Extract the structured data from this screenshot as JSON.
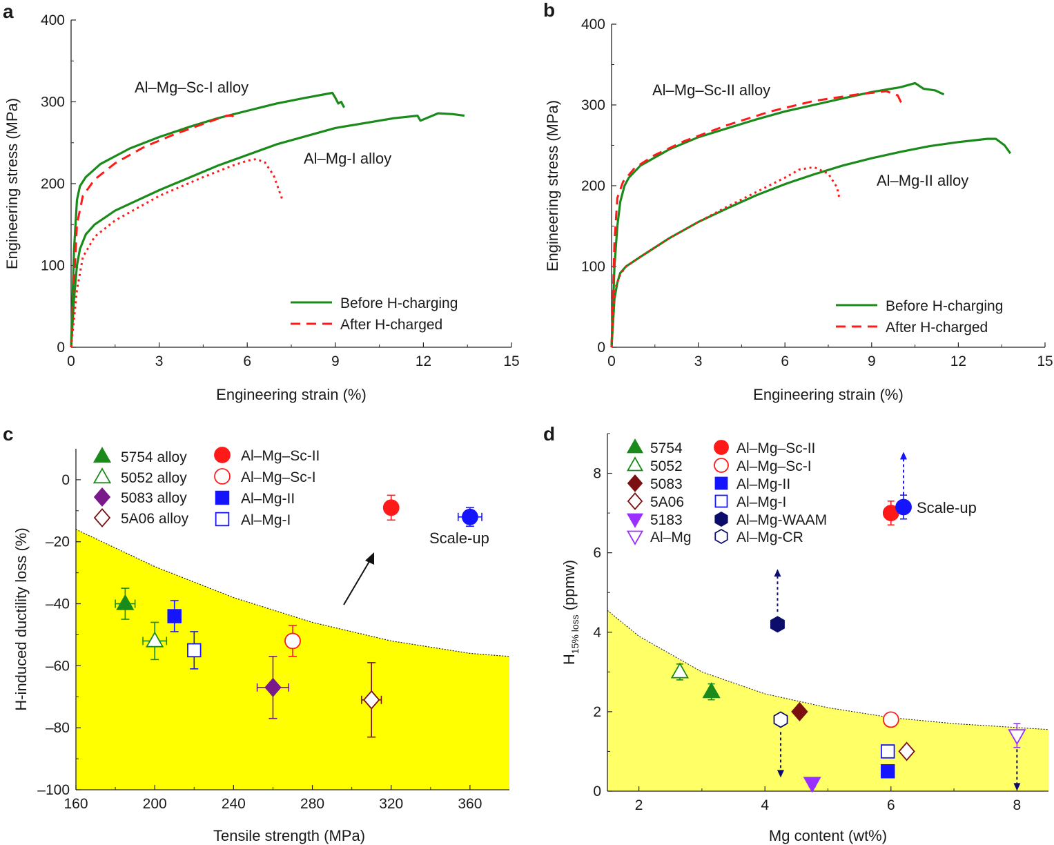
{
  "colors": {
    "green": "#1a8a1a",
    "red": "#ff1a1a",
    "blue": "#1414ff",
    "purple": "#7a1a8a",
    "maroon": "#7a1010",
    "violet": "#9a30ff",
    "navy": "#0c0c6a",
    "yellow": "#ffff00",
    "light_yellow": "#ffff66"
  },
  "chart_data": [
    {
      "panel": "a",
      "type": "line",
      "xlabel": "Engineering strain (%)",
      "ylabel": "Engineering stress (MPa)",
      "xlim": [
        0,
        15
      ],
      "ylim": [
        0,
        400
      ],
      "xticks": [
        "0",
        "3",
        "6",
        "9",
        "12",
        "15"
      ],
      "yticks": [
        "0",
        "100",
        "200",
        "300",
        "400"
      ],
      "annotations": [
        "Al–Mg–Sc-I alloy",
        "Al–Mg-I alloy"
      ],
      "legend": [
        "Before H-charging",
        "After H-charged"
      ],
      "series": [
        {
          "alloy": "Al–Mg–Sc-I",
          "state": "before",
          "x": [
            0,
            0.1,
            0.2,
            0.3,
            0.5,
            1,
            2,
            3,
            4,
            5,
            6,
            7,
            8,
            8.9,
            9.0,
            9.1,
            9.2,
            9.3
          ],
          "y": [
            0,
            120,
            180,
            197,
            208,
            224,
            243,
            257,
            269,
            280,
            289,
            298,
            305,
            311,
            305,
            298,
            300,
            293
          ]
        },
        {
          "alloy": "Al–Mg–Sc-I",
          "state": "after",
          "x": [
            0,
            0.1,
            0.2,
            0.4,
            0.8,
            1.5,
            2.5,
            3.5,
            4.5,
            5.3,
            5.5,
            5.6
          ],
          "y": [
            0,
            80,
            150,
            185,
            205,
            225,
            245,
            260,
            273,
            283,
            283,
            276
          ]
        },
        {
          "alloy": "Al–Mg-I",
          "state": "before",
          "x": [
            0,
            0.1,
            0.2,
            0.3,
            0.5,
            0.8,
            1.5,
            3,
            5,
            7,
            9,
            11,
            11.8,
            11.9,
            12.5,
            13,
            13.4
          ],
          "y": [
            0,
            60,
            100,
            120,
            138,
            150,
            167,
            192,
            222,
            248,
            268,
            280,
            283,
            277,
            286,
            285,
            283
          ]
        },
        {
          "alloy": "Al–Mg-I",
          "state": "after",
          "x": [
            0,
            0.2,
            0.4,
            0.8,
            1.5,
            3,
            4.5,
            5.5,
            6,
            6.3,
            6.6,
            6.9,
            7.1,
            7.2
          ],
          "y": [
            0,
            70,
            110,
            135,
            155,
            185,
            208,
            222,
            228,
            230,
            226,
            210,
            190,
            180
          ]
        }
      ]
    },
    {
      "panel": "b",
      "type": "line",
      "xlabel": "Engineering strain (%)",
      "ylabel": "Engineering stress (MPa)",
      "xlim": [
        0,
        15
      ],
      "ylim": [
        0,
        400
      ],
      "xticks": [
        "0",
        "3",
        "6",
        "9",
        "12",
        "15"
      ],
      "yticks": [
        "0",
        "100",
        "200",
        "300",
        "400"
      ],
      "annotations": [
        "Al–Mg–Sc-II alloy",
        "Al–Mg-II alloy"
      ],
      "legend": [
        "Before H-charging",
        "After H-charged"
      ],
      "series": [
        {
          "alloy": "Al–Mg–Sc-II",
          "state": "before",
          "x": [
            0,
            0.1,
            0.2,
            0.3,
            0.45,
            0.6,
            1,
            2,
            3,
            4,
            5,
            6,
            7,
            8,
            9,
            10,
            10.5,
            10.8,
            11.2,
            11.5
          ],
          "y": [
            0,
            100,
            150,
            180,
            200,
            210,
            225,
            245,
            260,
            271,
            282,
            292,
            300,
            308,
            316,
            322,
            327,
            320,
            318,
            313
          ]
        },
        {
          "alloy": "Al–Mg–Sc-II",
          "state": "after",
          "x": [
            0,
            0.1,
            0.2,
            0.4,
            0.8,
            1.5,
            2.5,
            4,
            5.5,
            7,
            8.5,
            9.5,
            9.9,
            10.1
          ],
          "y": [
            0,
            130,
            185,
            205,
            222,
            238,
            255,
            275,
            292,
            305,
            313,
            317,
            312,
            297
          ]
        },
        {
          "alloy": "Al–Mg-II",
          "state": "before",
          "x": [
            0,
            0.1,
            0.2,
            0.3,
            0.5,
            1,
            2,
            3,
            4,
            5,
            6,
            7,
            8,
            9,
            10,
            11,
            12,
            13,
            13.3,
            13.6,
            13.8
          ],
          "y": [
            0,
            60,
            80,
            92,
            100,
            112,
            135,
            155,
            172,
            188,
            202,
            214,
            225,
            234,
            242,
            249,
            254,
            258,
            258,
            250,
            240
          ]
        },
        {
          "alloy": "Al–Mg-II",
          "state": "after",
          "x": [
            0,
            0.1,
            0.3,
            0.5,
            1,
            2,
            3,
            4,
            5,
            6,
            6.5,
            7,
            7.5,
            7.8,
            7.9
          ],
          "y": [
            0,
            70,
            90,
            100,
            112,
            135,
            155,
            174,
            192,
            210,
            220,
            223,
            215,
            198,
            182
          ]
        }
      ]
    },
    {
      "panel": "c",
      "type": "scatter",
      "xlabel": "Tensile strength (MPa)",
      "ylabel": "H-induced ductility loss (%)",
      "xlim": [
        160,
        380
      ],
      "ylim": [
        -100,
        10
      ],
      "xticks": [
        "160",
        "200",
        "240",
        "280",
        "320",
        "360"
      ],
      "yticks": [
        "0",
        "–20",
        "–40",
        "–60",
        "–80",
        "–100"
      ],
      "annotations": [
        "Scale-up"
      ],
      "legend": [
        "5754 alloy",
        "5052 alloy",
        "5083 alloy",
        "5A06 alloy",
        "Al–Mg–Sc-II",
        "Al–Mg–Sc-I",
        "Al–Mg-II",
        "Al–Mg-I"
      ],
      "points": [
        {
          "label": "5754 alloy",
          "marker": "triangle-up",
          "filled": true,
          "color": "green",
          "x": 185,
          "y": -40,
          "xerr": 5,
          "yerr": 5
        },
        {
          "label": "5052 alloy",
          "marker": "triangle-up",
          "filled": false,
          "color": "green",
          "x": 200,
          "y": -52,
          "xerr": 6,
          "yerr": 6
        },
        {
          "label": "5083 alloy",
          "marker": "diamond",
          "filled": true,
          "color": "purple",
          "x": 260,
          "y": -67,
          "xerr": 8,
          "yerr": 10
        },
        {
          "label": "5A06 alloy",
          "marker": "diamond",
          "filled": false,
          "color": "maroon",
          "x": 310,
          "y": -71,
          "xerr": 5,
          "yerr": 12
        },
        {
          "label": "Al–Mg–Sc-II",
          "marker": "circle",
          "filled": true,
          "color": "red",
          "x": 320,
          "y": -9,
          "xerr": 2,
          "yerr": 4
        },
        {
          "label": "Al–Mg–Sc-I",
          "marker": "circle",
          "filled": false,
          "color": "red",
          "x": 270,
          "y": -52,
          "xerr": 2,
          "yerr": 5
        },
        {
          "label": "Al–Mg-II",
          "marker": "square",
          "filled": true,
          "color": "blue",
          "x": 210,
          "y": -44,
          "xerr": 3,
          "yerr": 5
        },
        {
          "label": "Al–Mg-I",
          "marker": "square",
          "filled": false,
          "color": "blue",
          "x": 220,
          "y": -55,
          "xerr": 3,
          "yerr": 6
        },
        {
          "label": "Scale-up",
          "marker": "circle",
          "filled": true,
          "color": "blue",
          "x": 360,
          "y": -12,
          "xerr": 6,
          "yerr": 3
        }
      ],
      "boundary": {
        "x": [
          160,
          200,
          240,
          280,
          320,
          360,
          380
        ],
        "y": [
          -16,
          -28,
          -38,
          -46,
          -52,
          -56,
          -57
        ]
      }
    },
    {
      "panel": "d",
      "type": "scatter",
      "xlabel": "Mg content (wt%)",
      "ylabel": "H15% loss (ppmw)",
      "xlim": [
        1.5,
        8.5
      ],
      "ylim": [
        0,
        9
      ],
      "xticks": [
        "2",
        "4",
        "6",
        "8"
      ],
      "yticks": [
        "0",
        "2",
        "4",
        "6",
        "8"
      ],
      "annotations": [
        "Scale-up"
      ],
      "legend": [
        "5754",
        "5052",
        "5083",
        "5A06",
        "5183",
        "Al–Mg",
        "Al–Mg–Sc-II",
        "Al–Mg–Sc-I",
        "Al–Mg-II",
        "Al–Mg-I",
        "Al–Mg-WAAM",
        "Al–Mg-CR"
      ],
      "points": [
        {
          "label": "5754",
          "marker": "triangle-up",
          "filled": true,
          "color": "green",
          "x": 3.15,
          "y": 2.5,
          "yerr": 0.2
        },
        {
          "label": "5052",
          "marker": "triangle-up",
          "filled": false,
          "color": "green",
          "x": 2.65,
          "y": 3.0,
          "yerr": 0.2
        },
        {
          "label": "5083",
          "marker": "diamond",
          "filled": true,
          "color": "maroon",
          "x": 4.55,
          "y": 2.0,
          "yerr": 0.1
        },
        {
          "label": "5A06",
          "marker": "diamond",
          "filled": false,
          "color": "maroon",
          "x": 6.25,
          "y": 1.0,
          "yerr": 0.05
        },
        {
          "label": "5183",
          "marker": "triangle-down",
          "filled": true,
          "color": "violet",
          "x": 4.75,
          "y": 0.2,
          "yerr": 0.1
        },
        {
          "label": "Al–Mg",
          "marker": "triangle-down",
          "filled": false,
          "color": "violet",
          "x": 8.0,
          "y": 1.4,
          "yerr": 0.3
        },
        {
          "label": "Al–Mg–Sc-II",
          "marker": "circle",
          "filled": true,
          "color": "red",
          "x": 6.0,
          "y": 7.0,
          "yerr": 0.3
        },
        {
          "label": "Al–Mg–Sc-I",
          "marker": "circle",
          "filled": false,
          "color": "red",
          "x": 6.0,
          "y": 1.8,
          "yerr": 0.1
        },
        {
          "label": "Al–Mg-II",
          "marker": "square",
          "filled": true,
          "color": "blue",
          "x": 5.95,
          "y": 0.5,
          "yerr": 0.15
        },
        {
          "label": "Al–Mg-I",
          "marker": "square",
          "filled": false,
          "color": "blue",
          "x": 5.95,
          "y": 1.0,
          "yerr": 0.15
        },
        {
          "label": "Al–Mg-WAAM",
          "marker": "hexagon",
          "filled": true,
          "color": "navy",
          "x": 4.2,
          "y": 4.2,
          "arrow": "up"
        },
        {
          "label": "Al–Mg-CR",
          "marker": "hexagon",
          "filled": false,
          "color": "navy",
          "x": 4.25,
          "y": 1.8,
          "arrow": "down"
        },
        {
          "label": "Scale-up",
          "marker": "circle",
          "filled": true,
          "color": "blue",
          "x": 6.2,
          "y": 7.15,
          "yerr": 0.3,
          "arrow": "up"
        }
      ],
      "boundary": {
        "x": [
          1.5,
          2,
          3,
          4,
          5,
          6,
          7,
          8,
          8.5
        ],
        "y": [
          4.55,
          3.9,
          3.0,
          2.45,
          2.1,
          1.85,
          1.7,
          1.6,
          1.55
        ]
      }
    }
  ],
  "panel_labels": [
    "a",
    "b",
    "c",
    "d"
  ],
  "d_ylabel_parts": {
    "main": "H",
    "sub": "15% loss",
    "unit": " (ppmw)"
  }
}
